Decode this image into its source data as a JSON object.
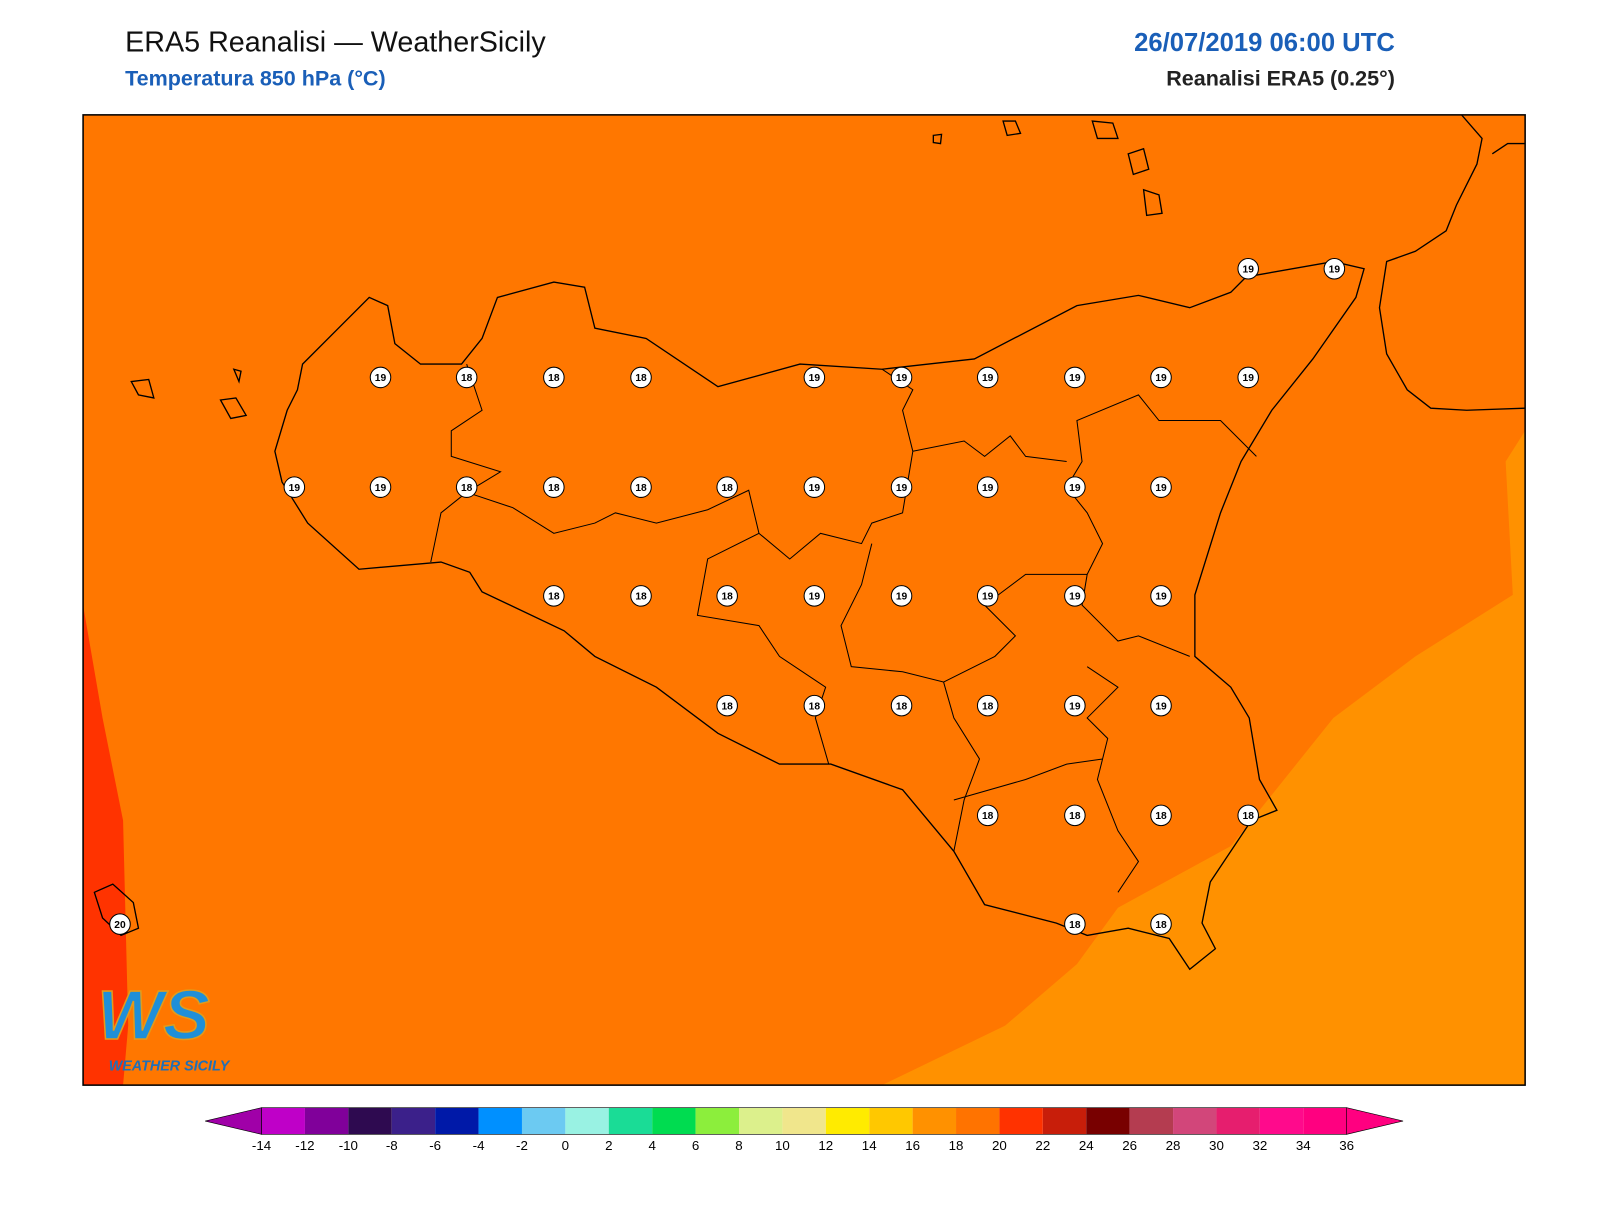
{
  "header": {
    "title": "ERA5 Reanalisi — WeatherSicily",
    "subtitle": "Temperatura 850 hPa (°C)",
    "datetime": "26/07/2019 06:00 UTC",
    "source": "Reanalisi ERA5 (0.25°)"
  },
  "map": {
    "station_labels": [
      19,
      19,
      19,
      18,
      18,
      18,
      19,
      19,
      19,
      19,
      19,
      19,
      19,
      19,
      18,
      18,
      18,
      18,
      19,
      19,
      19,
      19,
      19,
      18,
      18,
      18,
      19,
      19,
      19,
      19,
      19,
      18,
      18,
      18,
      18,
      19,
      19,
      18,
      18,
      18,
      18,
      20,
      18,
      18
    ]
  },
  "colorbar": {
    "ticks": [
      -14,
      -12,
      -10,
      -8,
      -6,
      -4,
      -2,
      0,
      2,
      4,
      6,
      8,
      10,
      12,
      14,
      16,
      18,
      20,
      22,
      24,
      26,
      28,
      30,
      32,
      34,
      36
    ],
    "colors": [
      "#bf00c8",
      "#80009a",
      "#2e0a50",
      "#3b208a",
      "#0019a8",
      "#0090ff",
      "#6ccaf2",
      "#99f2e3",
      "#1adc96",
      "#00dc50",
      "#8cee3c",
      "#dcf08c",
      "#f0e68c",
      "#ffeb00",
      "#ffc800",
      "#ff9100",
      "#ff7300",
      "#ff3200",
      "#c81e0a",
      "#780000",
      "#b43c50",
      "#d2467a",
      "#e61e6e",
      "#ff0a8c",
      "#ff0080"
    ],
    "under_color": "#a000a8",
    "over_color": "#ff0080"
  },
  "logo": {
    "mark": "WS",
    "name": "WEATHER SICILY"
  }
}
